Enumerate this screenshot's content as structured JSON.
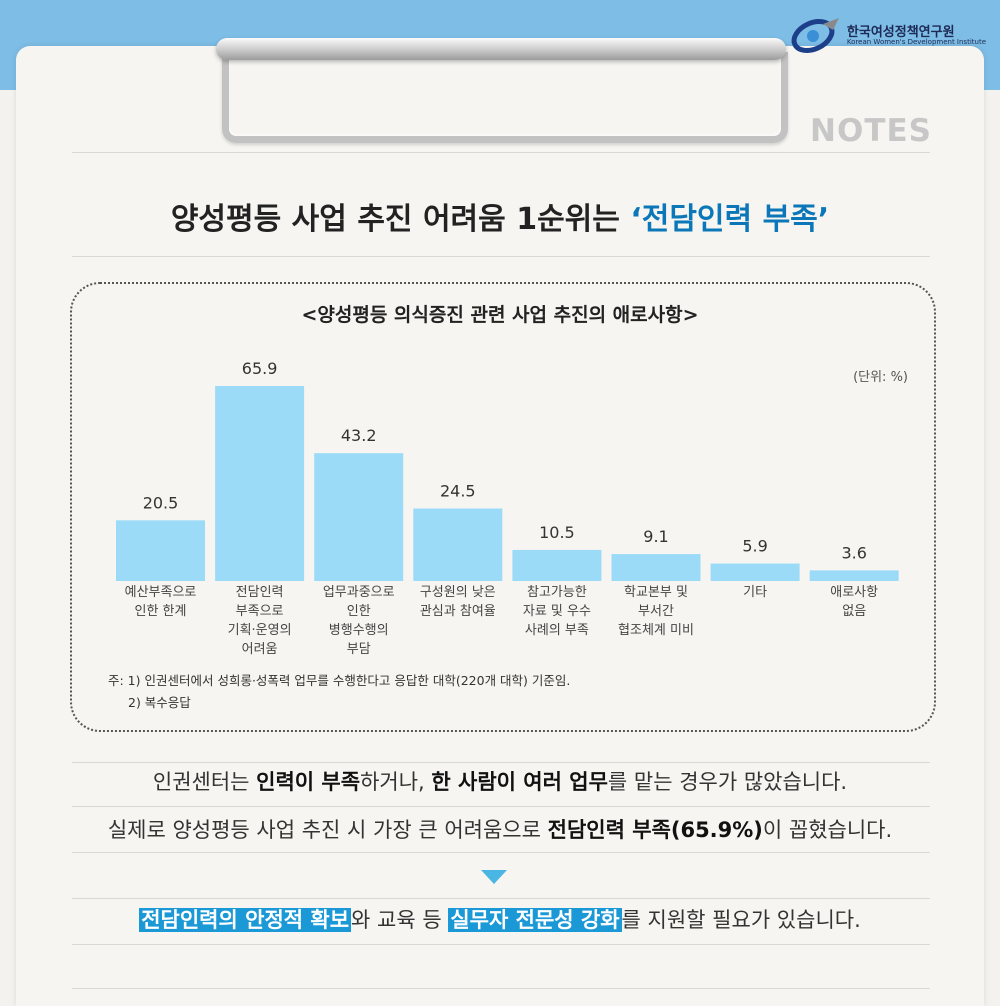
{
  "org": {
    "name_ko": "한국여성정책연구원",
    "name_en": "Korean Women's Development Institute"
  },
  "notes_label": "NOTES",
  "headline": {
    "prefix": "양성평등 사업 추진 어려움 1순위는 ",
    "highlight": "‘전담인력 부족’"
  },
  "chart_data": {
    "type": "bar",
    "title": "<양성평등 의식증진 관련 사업 추진의 애로사항>",
    "unit": "(단위: %)",
    "categories": [
      [
        "예산부족으로",
        "인한 한계"
      ],
      [
        "전담인력",
        "부족으로",
        "기획·운영의",
        "어려움"
      ],
      [
        "업무과중으로",
        "인한",
        "병행수행의",
        "부담"
      ],
      [
        "구성원의 낮은",
        "관심과 참여율"
      ],
      [
        "참고가능한",
        "자료 및 우수",
        "사례의 부족"
      ],
      [
        "학교본부 및",
        "부서간",
        "협조체계 미비"
      ],
      [
        "기타"
      ],
      [
        "애로사항",
        "없음"
      ]
    ],
    "values": [
      20.5,
      65.9,
      43.2,
      24.5,
      10.5,
      9.1,
      5.9,
      3.6
    ],
    "value_labels": [
      "20.5",
      "65.9",
      "43.2",
      "24.5",
      "10.5",
      "9.1",
      "5.9",
      "3.6"
    ],
    "color": "#9cdbf7",
    "ylim": [
      0,
      65.9
    ],
    "grid": false
  },
  "chart_notes": [
    "주: 1) 인권센터에서 성희롱·성폭력 업무를 수행한다고 응답한 대학(220개 대학) 기준임.",
    "2) 복수응답"
  ],
  "para1": {
    "a": "인권센터는 ",
    "b": "인력이 부족",
    "c": "하거나, ",
    "d": "한 사람이 여러 업무",
    "e": "를 맡는 경우가 많았습니다."
  },
  "para2": {
    "a": "실제로 양성평등 사업 추진 시 가장 큰 어려움으로 ",
    "b": "전담인력 부족(65.9%)",
    "c": "이 꼽혔습니다."
  },
  "conclusion": {
    "h1": "전담인력의 안정적 확보",
    "m1": "와 교육 등 ",
    "h2": "실무자 전문성 강화",
    "m2": "를 지원할 필요가 있습니다."
  },
  "colors": {
    "accent": "#1b98d6",
    "bar": "#9cdbf7",
    "band": "#7dbde6"
  }
}
